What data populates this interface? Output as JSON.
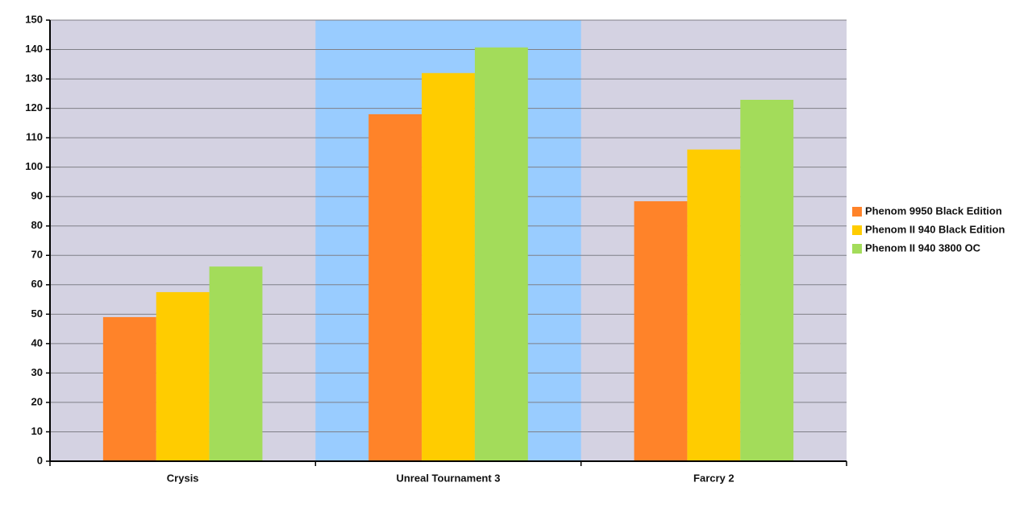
{
  "chart_data": {
    "type": "bar",
    "categories": [
      "Crysis",
      "Unreal Tournament 3",
      "Farcry 2"
    ],
    "series": [
      {
        "name": "Phenom 9950 Black Edition",
        "color": "#ff8329",
        "values": [
          49,
          118,
          88.4
        ]
      },
      {
        "name": "Phenom II 940 Black Edition",
        "color": "#ffcc00",
        "values": [
          57.5,
          132,
          106
        ]
      },
      {
        "name": "Phenom II 940 3800 OC",
        "color": "#a3dc5a",
        "values": [
          66.2,
          140.7,
          122.9
        ]
      }
    ],
    "ylim": [
      0,
      150
    ],
    "yticks": [
      0,
      10,
      20,
      30,
      40,
      50,
      60,
      70,
      80,
      90,
      100,
      110,
      120,
      130,
      140,
      150
    ],
    "grid": true,
    "legend": "right",
    "plot_background": "#d4d2e2",
    "highlight_index": 1,
    "highlight_color": "#99ccff"
  }
}
